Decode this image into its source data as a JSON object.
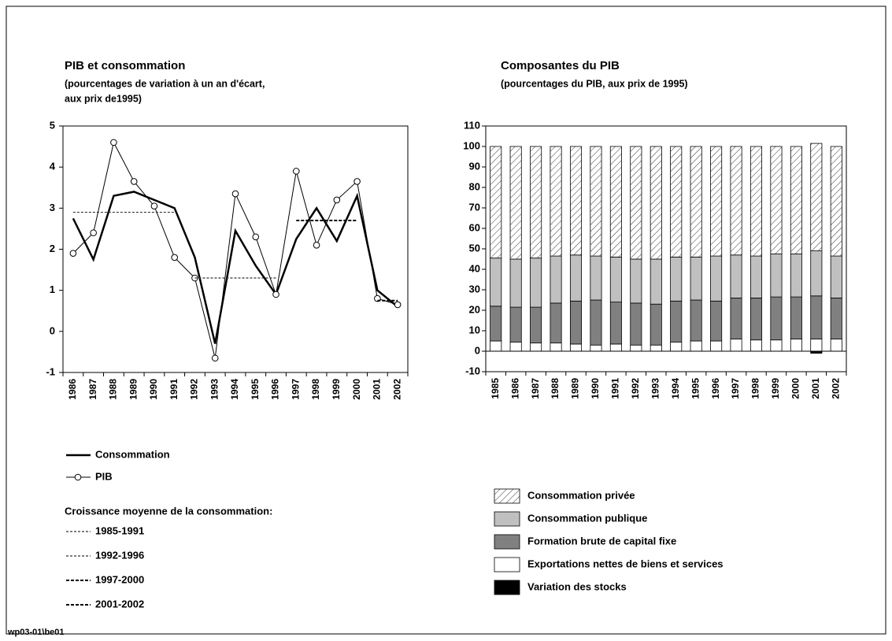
{
  "chart_data": [
    {
      "type": "line",
      "title": "PIB et consommation",
      "subtitle": [
        "(pourcentages de variation à un an d'écart,",
        "aux prix de1995)"
      ],
      "categories": [
        "1986",
        "1987",
        "1988",
        "1989",
        "1990",
        "1991",
        "1992",
        "1993",
        "1994",
        "1995",
        "1996",
        "1997",
        "1998",
        "1999",
        "2000",
        "2001",
        "2002"
      ],
      "ylim": [
        -1,
        5
      ],
      "yticks": [
        -1,
        0,
        1,
        2,
        3,
        4,
        5
      ],
      "legend_title": "Croissance moyenne de la consommation:",
      "series": [
        {
          "name": "Consommation",
          "color": "#000000",
          "style": "bold",
          "values": [
            2.75,
            1.75,
            3.3,
            3.4,
            3.2,
            3.0,
            1.8,
            -0.3,
            2.45,
            1.6,
            0.9,
            2.25,
            3.0,
            2.2,
            3.3,
            1.0,
            0.6
          ]
        },
        {
          "name": "PIB",
          "color": "#000000",
          "style": "thin",
          "marker": "circle",
          "values": [
            1.9,
            2.4,
            4.6,
            3.65,
            3.05,
            1.8,
            1.3,
            -0.65,
            3.35,
            2.3,
            0.9,
            3.9,
            2.1,
            3.2,
            3.65,
            0.8,
            0.65
          ]
        },
        {
          "name": "1985-1991",
          "color": "#333333",
          "style": "dotted",
          "values": [
            2.9,
            2.9,
            2.9,
            2.9,
            2.9,
            2.9,
            null,
            null,
            null,
            null,
            null,
            null,
            null,
            null,
            null,
            null,
            null
          ]
        },
        {
          "name": "1992-1996",
          "color": "#333333",
          "style": "dotted",
          "values": [
            null,
            null,
            null,
            null,
            null,
            null,
            1.3,
            1.3,
            1.3,
            1.3,
            1.3,
            null,
            null,
            null,
            null,
            null,
            null
          ]
        },
        {
          "name": "1997-2000",
          "color": "#000000",
          "style": "dashed",
          "values": [
            null,
            null,
            null,
            null,
            null,
            null,
            null,
            null,
            null,
            null,
            null,
            2.7,
            2.7,
            2.7,
            2.7,
            null,
            null
          ]
        },
        {
          "name": "2001-2002",
          "color": "#000000",
          "style": "dashed",
          "values": [
            null,
            null,
            null,
            null,
            null,
            null,
            null,
            null,
            null,
            null,
            null,
            null,
            null,
            null,
            null,
            0.75,
            0.75
          ]
        }
      ]
    },
    {
      "type": "stacked_bar",
      "title": "Composantes du PIB",
      "subtitle": [
        "(pourcentages du PIB, aux prix de 1995)"
      ],
      "categories": [
        "1985",
        "1986",
        "1987",
        "1988",
        "1989",
        "1990",
        "1991",
        "1992",
        "1993",
        "1994",
        "1995",
        "1996",
        "1997",
        "1998",
        "1999",
        "2000",
        "2001",
        "2002"
      ],
      "ylim": [
        -10,
        110
      ],
      "yticks": [
        -10,
        0,
        10,
        20,
        30,
        40,
        50,
        60,
        70,
        80,
        90,
        100,
        110
      ],
      "series": [
        {
          "name": "Consommation privée",
          "color": "#ffffff",
          "pattern": "hatch",
          "values": [
            54.5,
            55,
            54.5,
            53.5,
            53,
            53.5,
            54,
            55,
            55,
            54,
            54,
            53.5,
            53,
            53.5,
            52.5,
            52.5,
            52.5,
            53.5
          ]
        },
        {
          "name": "Consommation publique",
          "color": "#c0c0c0",
          "values": [
            23.5,
            23.5,
            24,
            23,
            22.5,
            21.5,
            22,
            21.5,
            22,
            21.5,
            21,
            22,
            21,
            20.5,
            21,
            21,
            22,
            20.5
          ]
        },
        {
          "name": "Formation brute de capital fixe",
          "color": "#808080",
          "values": [
            17,
            17,
            17.5,
            19.5,
            21,
            22,
            20.5,
            20.5,
            20,
            20,
            20,
            19.5,
            20,
            20.5,
            21,
            20.5,
            21,
            20
          ]
        },
        {
          "name": "Exportations nettes de biens et services",
          "color": "#ffffff",
          "values": [
            5,
            4.5,
            4,
            4,
            3.5,
            3,
            3.5,
            3,
            3,
            4.5,
            5,
            5,
            6,
            5.5,
            5.5,
            6,
            6,
            6
          ]
        },
        {
          "name": "Variation des stocks",
          "color": "#000000",
          "values": [
            0,
            0,
            0,
            0,
            0,
            0,
            0,
            0,
            0,
            0,
            0,
            0,
            0,
            0,
            0,
            0,
            -1,
            0
          ]
        }
      ]
    }
  ],
  "footer": "wp03-01\\be01"
}
